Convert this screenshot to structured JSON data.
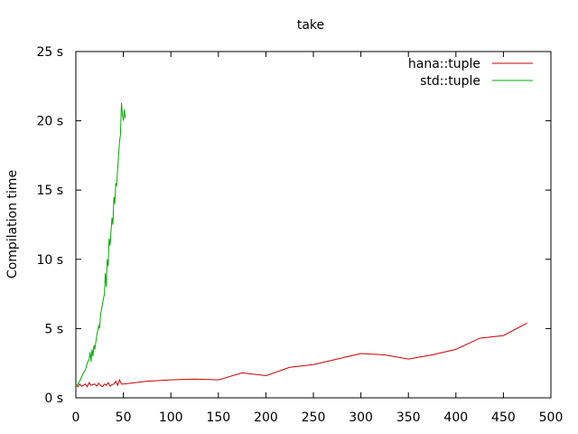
{
  "chart_data": {
    "type": "line",
    "title": "take",
    "xlabel": "",
    "ylabel": "Compilation time",
    "xlim": [
      0,
      500
    ],
    "ylim": [
      0,
      25
    ],
    "x_ticks": [
      0,
      50,
      100,
      150,
      200,
      250,
      300,
      350,
      400,
      450,
      500
    ],
    "x_tick_labels": [
      "0",
      "50",
      "100",
      "150",
      "200",
      "250",
      "300",
      "350",
      "400",
      "450",
      "500"
    ],
    "y_ticks": [
      0,
      5,
      10,
      15,
      20,
      25
    ],
    "y_tick_labels": [
      "0 s",
      "5 s",
      "10 s",
      "15 s",
      "20 s",
      "25 s"
    ],
    "grid": false,
    "legend_position": "top-right",
    "series": [
      {
        "name": "hana::tuple",
        "color": "#cc0000",
        "x": [
          0,
          2,
          4,
          6,
          8,
          10,
          12,
          14,
          16,
          18,
          20,
          22,
          24,
          26,
          28,
          30,
          32,
          34,
          36,
          38,
          40,
          42,
          44,
          46,
          48,
          50,
          75,
          100,
          125,
          150,
          175,
          200,
          225,
          250,
          275,
          300,
          325,
          350,
          375,
          400,
          425,
          450,
          475
        ],
        "y": [
          0.9,
          0.8,
          1.0,
          0.85,
          0.9,
          1.0,
          0.8,
          1.1,
          0.9,
          0.95,
          1.0,
          0.85,
          1.05,
          0.9,
          0.8,
          1.0,
          0.9,
          1.1,
          0.85,
          0.95,
          1.0,
          1.2,
          0.9,
          1.3,
          1.0,
          1.0,
          1.2,
          1.3,
          1.35,
          1.3,
          1.8,
          1.6,
          2.2,
          2.4,
          2.8,
          3.2,
          3.1,
          2.8,
          3.1,
          3.5,
          4.3,
          4.5,
          5.4
        ]
      },
      {
        "name": "std::tuple",
        "color": "#00aa00",
        "x": [
          0,
          2,
          4,
          6,
          8,
          10,
          12,
          14,
          15,
          16,
          17,
          18,
          19,
          20,
          22,
          24,
          25,
          26,
          28,
          30,
          31,
          32,
          33,
          34,
          35,
          36,
          37,
          38,
          39,
          40,
          41,
          42,
          43,
          44,
          45,
          46,
          47,
          48,
          49,
          50,
          51,
          52
        ],
        "y": [
          0.8,
          1.0,
          1.2,
          1.5,
          1.8,
          2.0,
          2.5,
          2.8,
          3.3,
          2.6,
          3.5,
          3.0,
          3.8,
          3.5,
          4.5,
          5.2,
          5.0,
          6.0,
          6.8,
          7.5,
          9.0,
          8.0,
          10.0,
          9.5,
          11.5,
          11.0,
          12.0,
          13.0,
          12.5,
          14.5,
          14.0,
          15.5,
          15.3,
          16.5,
          17.5,
          18.5,
          19.0,
          21.3,
          20.5,
          20.0,
          20.8,
          20.2
        ]
      }
    ]
  }
}
